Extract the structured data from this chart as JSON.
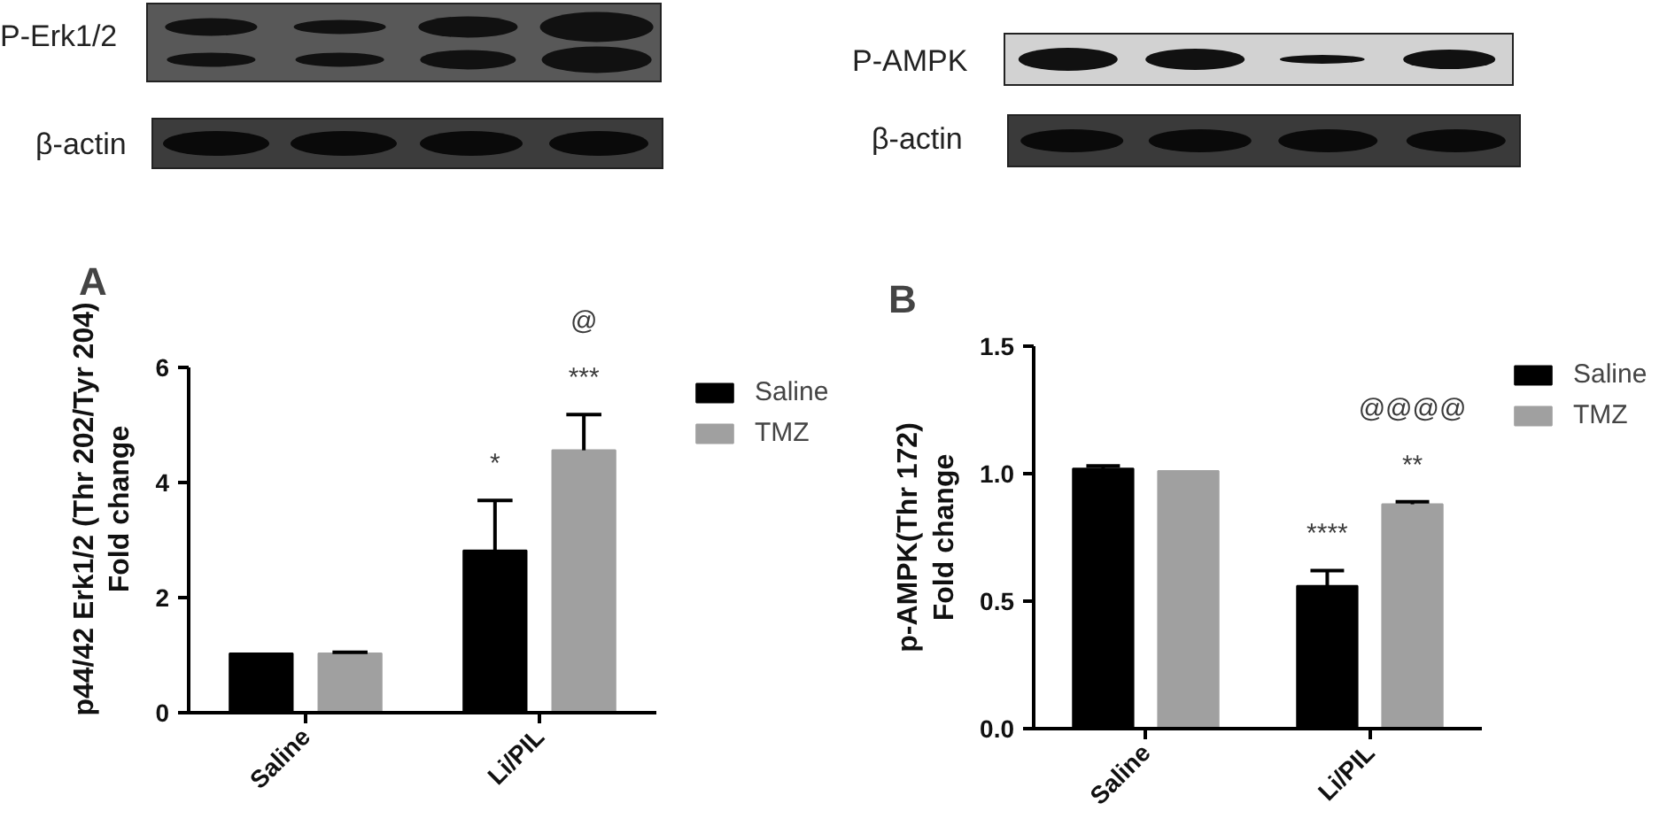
{
  "chart_data": [
    {
      "type": "bar",
      "title": "A",
      "ylabel": "p44/42 Erk1/2 (Thr 202/Tyr 204)\nFold change",
      "categories": [
        "Saline",
        "Li/PIL"
      ],
      "series": [
        {
          "name": "Saline",
          "color": "#000000",
          "values": [
            1.03,
            2.82
          ],
          "errors": [
            null,
            [
              2.82,
              3.69
            ]
          ]
        },
        {
          "name": "TMZ",
          "color": "#a0a0a0",
          "values": [
            1.03,
            4.56
          ],
          "errors": [
            [
              1.03,
              1.05
            ],
            [
              4.56,
              5.18
            ]
          ]
        }
      ],
      "ylim": [
        0,
        6
      ],
      "yticks": [
        0,
        2,
        4,
        6
      ],
      "grid": false,
      "legend": "top right",
      "annotations": [
        "P-Erk1/2",
        "β-actin",
        "*",
        "***",
        "@"
      ]
    },
    {
      "type": "bar",
      "title": "B",
      "ylabel": "p-AMPK(Thr 172)\nFold change",
      "categories": [
        "Saline",
        "Li/PIL"
      ],
      "series": [
        {
          "name": "Saline",
          "color": "#000000",
          "values": [
            1.02,
            0.56
          ],
          "errors": [
            [
              1.02,
              1.03
            ],
            [
              0.56,
              0.62
            ]
          ]
        },
        {
          "name": "TMZ",
          "color": "#a0a0a0",
          "values": [
            1.01,
            0.88
          ],
          "errors": [
            null,
            [
              0.88,
              0.89
            ]
          ]
        }
      ],
      "ylim": [
        0,
        1.5
      ],
      "yticks": [
        {
          "value": 0,
          "label": "0.0"
        },
        {
          "value": 0.5,
          "label": "0.5"
        },
        {
          "value": 1,
          "label": "1.0"
        },
        {
          "value": 1.5,
          "label": "1.5"
        }
      ],
      "grid": false,
      "legend": "top right",
      "annotations": [
        "P-AMPK",
        "β-actin",
        "****",
        "**",
        "@@@@"
      ]
    }
  ]
}
